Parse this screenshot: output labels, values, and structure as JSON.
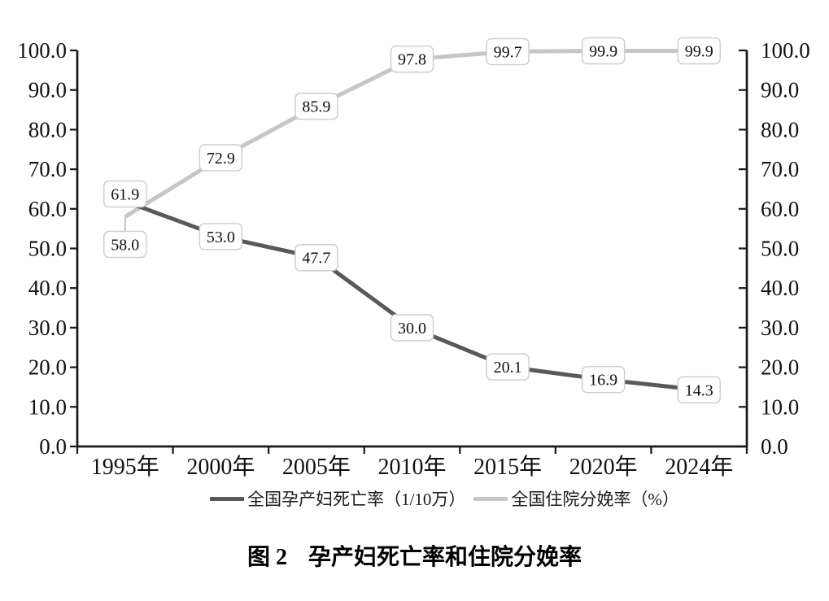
{
  "figure": {
    "caption_prefix": "图 2",
    "caption_title": "孕产妇死亡率和住院分娩率"
  },
  "chart_data": {
    "type": "line",
    "title": "图 2 孕产妇死亡率和住院分娩率",
    "categories": [
      "1995年",
      "2000年",
      "2005年",
      "2010年",
      "2015年",
      "2020年",
      "2024年"
    ],
    "series": [
      {
        "name": "全国孕产妇死亡率（1/10万）",
        "values": [
          61.9,
          53.0,
          47.7,
          30.0,
          20.1,
          16.9,
          14.3
        ],
        "color": "#595959"
      },
      {
        "name": "全国住院分娩率（%）",
        "values": [
          58.0,
          72.9,
          85.9,
          97.8,
          99.7,
          99.9,
          99.9
        ],
        "color": "#c6c6c6"
      }
    ],
    "xlabel": "",
    "ylabel": "",
    "ylim": [
      0,
      100
    ],
    "ytick_step": 10,
    "ytick_decimals": 1,
    "dual_y_axis": true,
    "grid": false,
    "legend_position": "bottom",
    "data_labels": true,
    "label_overrides": [
      {
        "series": 0,
        "point": 0,
        "dy": -9
      },
      {
        "series": 1,
        "point": 0,
        "dy": 34,
        "leader": true
      }
    ],
    "colors": {
      "axis": "#1a1a1a",
      "label_box_fill": "#ffffff",
      "label_box_border": "#cfcfcf",
      "label_text": "#111111",
      "leader": "#c0c0c0"
    }
  }
}
